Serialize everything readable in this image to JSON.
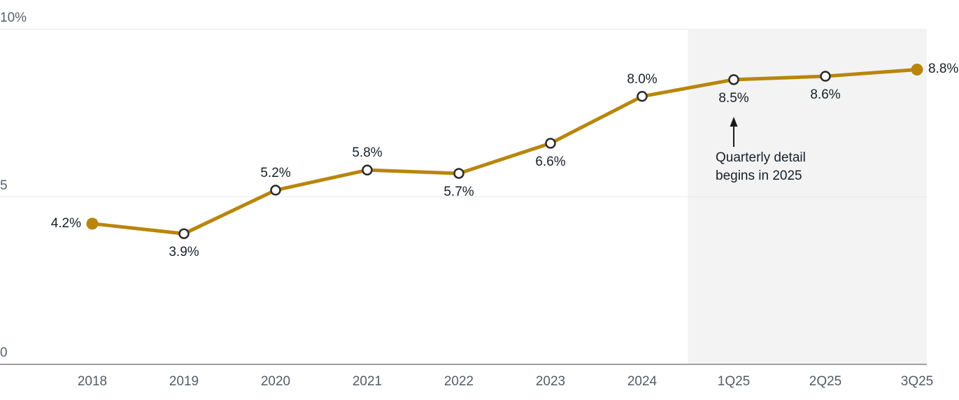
{
  "chart_data": {
    "type": "line",
    "categories": [
      "2018",
      "2019",
      "2020",
      "2021",
      "2022",
      "2023",
      "2024",
      "1Q25",
      "2Q25",
      "3Q25"
    ],
    "values": [
      4.2,
      3.9,
      5.2,
      5.8,
      5.7,
      6.6,
      8.0,
      8.5,
      8.6,
      8.8
    ],
    "point_labels": [
      "4.2%",
      "3.9%",
      "5.2%",
      "5.8%",
      "5.7%",
      "6.6%",
      "8.0%",
      "8.5%",
      "8.6%",
      "8.8%"
    ],
    "label_positions": [
      "left",
      "below",
      "above",
      "above",
      "below",
      "below",
      "above",
      "below",
      "below",
      "right"
    ],
    "marker_styles": [
      "filled",
      "open",
      "open",
      "open",
      "open",
      "open",
      "open",
      "open",
      "open",
      "filled"
    ],
    "ylim": [
      0,
      10
    ],
    "yticks": [
      {
        "value": 0,
        "label": "0"
      },
      {
        "value": 5,
        "label": "5"
      },
      {
        "value": 10,
        "label": "10%"
      }
    ],
    "grid": "horizontal-at-yticks",
    "legend": "none",
    "highlight_region": {
      "from_category": "1Q25",
      "to_end": true
    },
    "annotation": {
      "line1": "Quarterly detail",
      "line2": "begins in 2025",
      "arrow": "up",
      "target_category": "1Q25"
    },
    "colors": {
      "line": "#B8860B",
      "marker_stroke": "#2b2b2b",
      "marker_fill": "#ffffff",
      "label_text": "#16202c",
      "axis_text": "#57626d",
      "gridline": "#eaeaea",
      "axis_line": "#a0a0a0",
      "highlight_bg": "#f3f3f3",
      "arrow": "#1a1a1a"
    }
  }
}
